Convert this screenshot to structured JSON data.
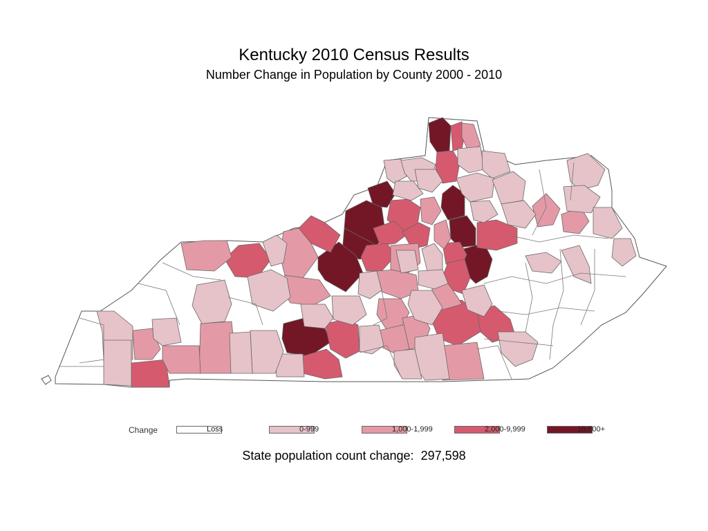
{
  "title": "Kentucky 2010 Census Results",
  "subtitle": "Number Change in Population by County 2000 - 2010",
  "legend": {
    "title": "Change",
    "items": [
      {
        "label": "Loss",
        "color": "#ffffff"
      },
      {
        "label": "0-999",
        "color": "#e6c3c9"
      },
      {
        "label": "1,000-1,999",
        "color": "#e49aa6"
      },
      {
        "label": "2,000-9,999",
        "color": "#d65a6e"
      },
      {
        "label": "10,000+",
        "color": "#731726"
      }
    ]
  },
  "footer": {
    "label": "State population count change:",
    "value": "297,598"
  }
}
